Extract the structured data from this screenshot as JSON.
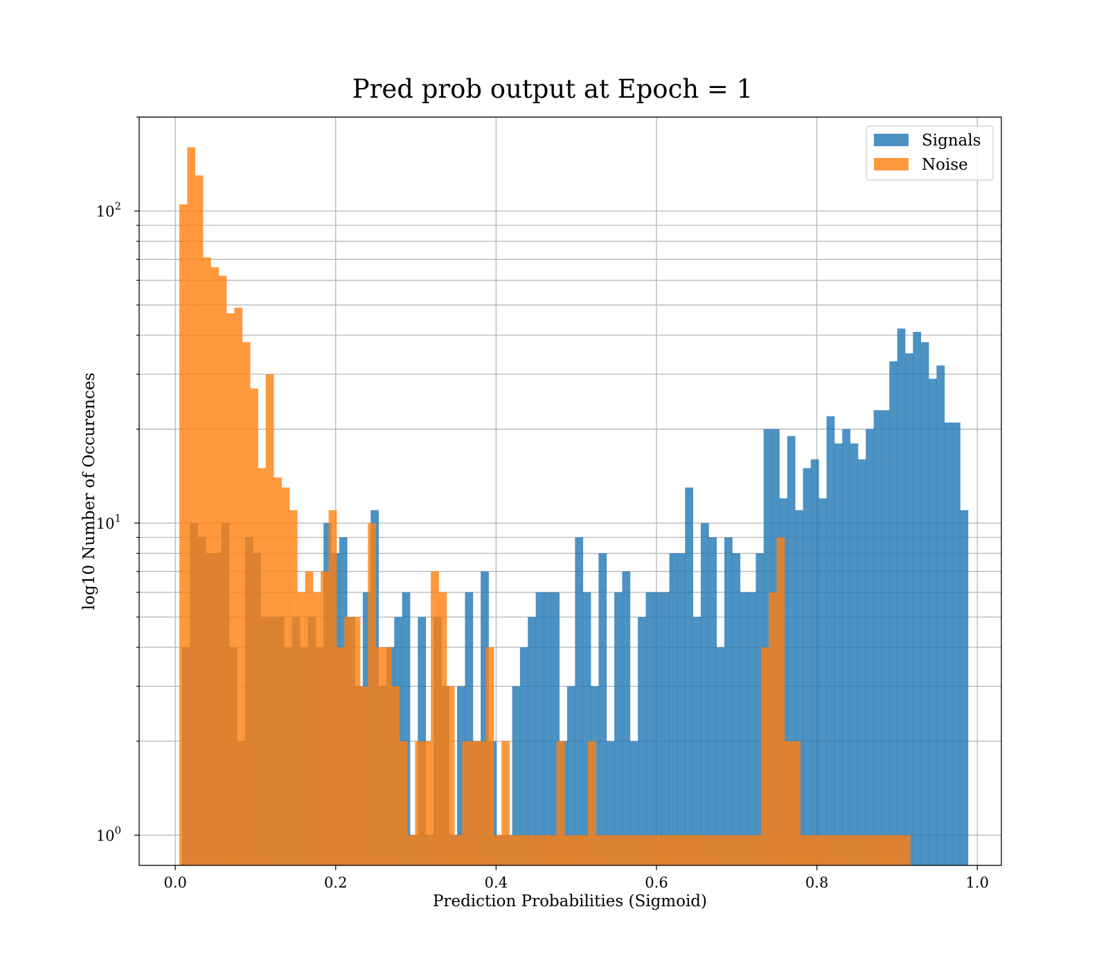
{
  "chart_data": {
    "type": "bar",
    "title": "Pred prob output at Epoch = 1",
    "xlabel": "Prediction Probabilities (Sigmoid)",
    "ylabel": "log10 Number of Occurences",
    "xlim": [
      -0.045,
      1.03
    ],
    "ylim": [
      0.8,
      200
    ],
    "yscale": "log",
    "grid": true,
    "xticks": [
      {
        "value": 0.0,
        "label": "0.0"
      },
      {
        "value": 0.2,
        "label": "0.2"
      },
      {
        "value": 0.4,
        "label": "0.4"
      },
      {
        "value": 0.6,
        "label": "0.6"
      },
      {
        "value": 0.8,
        "label": "0.8"
      },
      {
        "value": 1.0,
        "label": "1.0"
      }
    ],
    "yticks": [
      {
        "value": 1,
        "base": "10",
        "exp": "0"
      },
      {
        "value": 10,
        "base": "10",
        "exp": "1"
      },
      {
        "value": 100,
        "base": "10",
        "exp": "2"
      }
    ],
    "legend": {
      "position": "top-right"
    },
    "series": [
      {
        "name": "Signals",
        "color": "#1f77b4",
        "opacity": 0.8,
        "bin_width": 0.00981,
        "bins": [
          [
            0.0083,
            4
          ],
          [
            0.0181,
            10
          ],
          [
            0.0279,
            9
          ],
          [
            0.0377,
            8
          ],
          [
            0.0475,
            8
          ],
          [
            0.0574,
            10
          ],
          [
            0.0672,
            4
          ],
          [
            0.077,
            2
          ],
          [
            0.0868,
            9
          ],
          [
            0.0966,
            8
          ],
          [
            0.1064,
            5
          ],
          [
            0.1162,
            5
          ],
          [
            0.126,
            5
          ],
          [
            0.1358,
            4
          ],
          [
            0.1456,
            5
          ],
          [
            0.1554,
            4
          ],
          [
            0.1652,
            5
          ],
          [
            0.175,
            4
          ],
          [
            0.1848,
            10
          ],
          [
            0.1946,
            8
          ],
          [
            0.2044,
            9
          ],
          [
            0.2142,
            5
          ],
          [
            0.224,
            3
          ],
          [
            0.2338,
            6
          ],
          [
            0.2436,
            11
          ],
          [
            0.2534,
            3
          ],
          [
            0.2632,
            4
          ],
          [
            0.273,
            5
          ],
          [
            0.2828,
            6
          ],
          [
            0.2926,
            1
          ],
          [
            0.3024,
            5
          ],
          [
            0.3122,
            1
          ],
          [
            0.322,
            5
          ],
          [
            0.3318,
            3
          ],
          [
            0.3416,
            1
          ],
          [
            0.3514,
            3
          ],
          [
            0.3612,
            6
          ],
          [
            0.371,
            2
          ],
          [
            0.3808,
            7
          ],
          [
            0.3906,
            2
          ],
          [
            0.4004,
            1
          ],
          [
            0.4102,
            1
          ],
          [
            0.42,
            3
          ],
          [
            0.4298,
            4
          ],
          [
            0.4396,
            5
          ],
          [
            0.4494,
            6
          ],
          [
            0.4592,
            6
          ],
          [
            0.469,
            6
          ],
          [
            0.4788,
            2
          ],
          [
            0.4886,
            3
          ],
          [
            0.4984,
            9
          ],
          [
            0.5082,
            6
          ],
          [
            0.518,
            3
          ],
          [
            0.5278,
            8
          ],
          [
            0.5376,
            2
          ],
          [
            0.5474,
            6
          ],
          [
            0.5572,
            7
          ],
          [
            0.567,
            2
          ],
          [
            0.5768,
            5
          ],
          [
            0.5866,
            6
          ],
          [
            0.5964,
            6
          ],
          [
            0.6062,
            6
          ],
          [
            0.616,
            8
          ],
          [
            0.6258,
            8
          ],
          [
            0.6356,
            13
          ],
          [
            0.6454,
            5
          ],
          [
            0.6552,
            10
          ],
          [
            0.665,
            9
          ],
          [
            0.6748,
            4
          ],
          [
            0.6846,
            9
          ],
          [
            0.6944,
            8
          ],
          [
            0.7042,
            6
          ],
          [
            0.714,
            6
          ],
          [
            0.7238,
            8
          ],
          [
            0.7336,
            20
          ],
          [
            0.7434,
            20
          ],
          [
            0.7532,
            12
          ],
          [
            0.763,
            19
          ],
          [
            0.7728,
            11
          ],
          [
            0.7826,
            15
          ],
          [
            0.7924,
            16
          ],
          [
            0.8022,
            12
          ],
          [
            0.812,
            22
          ],
          [
            0.8218,
            18
          ],
          [
            0.8316,
            20
          ],
          [
            0.8414,
            18
          ],
          [
            0.8512,
            16
          ],
          [
            0.861,
            20
          ],
          [
            0.8708,
            23
          ],
          [
            0.8806,
            23
          ],
          [
            0.8904,
            33
          ],
          [
            0.9002,
            42
          ],
          [
            0.91,
            35
          ],
          [
            0.9198,
            41
          ],
          [
            0.9296,
            38
          ],
          [
            0.9394,
            29
          ],
          [
            0.9492,
            32
          ],
          [
            0.959,
            21
          ],
          [
            0.9688,
            21
          ],
          [
            0.9786,
            11
          ]
        ]
      },
      {
        "name": "Noise",
        "color": "#ff7f0e",
        "opacity": 0.8,
        "bin_width": 0.00981,
        "bins": [
          [
            0.005,
            105
          ],
          [
            0.0148,
            160
          ],
          [
            0.0246,
            130
          ],
          [
            0.0344,
            71
          ],
          [
            0.0442,
            66
          ],
          [
            0.054,
            62
          ],
          [
            0.0638,
            47
          ],
          [
            0.0736,
            49
          ],
          [
            0.0834,
            38
          ],
          [
            0.0932,
            27
          ],
          [
            0.103,
            15
          ],
          [
            0.1128,
            30
          ],
          [
            0.1226,
            14
          ],
          [
            0.1324,
            13
          ],
          [
            0.1422,
            11
          ],
          [
            0.152,
            6
          ],
          [
            0.1618,
            7
          ],
          [
            0.1716,
            6
          ],
          [
            0.1814,
            7
          ],
          [
            0.1912,
            11
          ],
          [
            0.201,
            4
          ],
          [
            0.2108,
            5
          ],
          [
            0.2206,
            5
          ],
          [
            0.2304,
            3
          ],
          [
            0.2402,
            10
          ],
          [
            0.25,
            4
          ],
          [
            0.2598,
            4
          ],
          [
            0.2696,
            3
          ],
          [
            0.2794,
            2
          ],
          [
            0.2892,
            1
          ],
          [
            0.299,
            2
          ],
          [
            0.3088,
            2
          ],
          [
            0.3186,
            7
          ],
          [
            0.3284,
            6
          ],
          [
            0.3382,
            3
          ],
          [
            0.348,
            1
          ],
          [
            0.3578,
            2
          ],
          [
            0.3676,
            2
          ],
          [
            0.3774,
            2
          ],
          [
            0.3872,
            4
          ],
          [
            0.397,
            1
          ],
          [
            0.4068,
            2
          ],
          [
            0.4166,
            1
          ],
          [
            0.4264,
            1
          ],
          [
            0.4362,
            1
          ],
          [
            0.446,
            1
          ],
          [
            0.4558,
            1
          ],
          [
            0.4656,
            1
          ],
          [
            0.4754,
            2
          ],
          [
            0.4852,
            1
          ],
          [
            0.495,
            1
          ],
          [
            0.5048,
            1
          ],
          [
            0.5146,
            2
          ],
          [
            0.5244,
            1
          ],
          [
            0.5342,
            1
          ],
          [
            0.544,
            1
          ],
          [
            0.5538,
            1
          ],
          [
            0.5636,
            1
          ],
          [
            0.5734,
            1
          ],
          [
            0.5832,
            1
          ],
          [
            0.593,
            1
          ],
          [
            0.6028,
            1
          ],
          [
            0.6126,
            1
          ],
          [
            0.6224,
            1
          ],
          [
            0.6322,
            1
          ],
          [
            0.642,
            1
          ],
          [
            0.6518,
            1
          ],
          [
            0.6616,
            1
          ],
          [
            0.6714,
            1
          ],
          [
            0.6812,
            1
          ],
          [
            0.691,
            1
          ],
          [
            0.7008,
            1
          ],
          [
            0.7106,
            1
          ],
          [
            0.7204,
            1
          ],
          [
            0.7302,
            4
          ],
          [
            0.74,
            6
          ],
          [
            0.7498,
            9
          ],
          [
            0.7596,
            2
          ],
          [
            0.7694,
            2
          ],
          [
            0.7792,
            1
          ],
          [
            0.789,
            1
          ],
          [
            0.7988,
            1
          ],
          [
            0.8086,
            1
          ],
          [
            0.8184,
            1
          ],
          [
            0.8282,
            1
          ],
          [
            0.838,
            1
          ],
          [
            0.8478,
            1
          ],
          [
            0.8576,
            1
          ],
          [
            0.8674,
            1
          ],
          [
            0.8772,
            1
          ],
          [
            0.887,
            1
          ],
          [
            0.8968,
            1
          ],
          [
            0.9066,
            1
          ]
        ]
      }
    ]
  }
}
